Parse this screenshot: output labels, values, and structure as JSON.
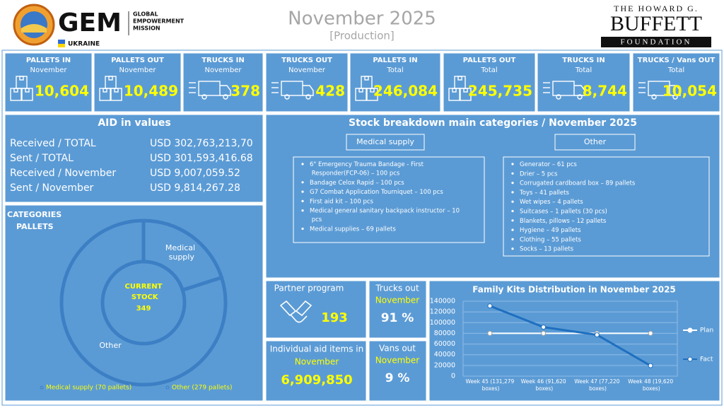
{
  "header": {
    "org_name": "GEM",
    "mission_lines": [
      "GLOBAL",
      "EMPOWERMENT",
      "MISSION"
    ],
    "country": "UKRAINE",
    "title": "November 2025",
    "subtitle": "[Production]",
    "sponsor_top": "THE HOWARD G.",
    "sponsor_name": "BUFFETT",
    "sponsor_bottom": "FOUNDATION"
  },
  "kpis": [
    {
      "label": "PALLETS IN",
      "period": "November",
      "value": "10,604"
    },
    {
      "label": "PALLETS OUT",
      "period": "November",
      "value": "10,489"
    },
    {
      "label": "TRUCKS IN",
      "period": "November",
      "value": "378"
    },
    {
      "label": "TRUCKS OUT",
      "period": "November",
      "value": "428"
    },
    {
      "label": "PALLETS IN",
      "period": "Total",
      "value": "246,084"
    },
    {
      "label": "PALLETS OUT",
      "period": "Total",
      "value": "245,735"
    },
    {
      "label": "TRUCKS IN",
      "period": "Total",
      "value": "8,744"
    },
    {
      "label": "TRUCKS / Vans OUT",
      "period": "Total",
      "value": "10,054"
    }
  ],
  "aid": {
    "title": "AID in values",
    "rows": [
      [
        "Received / TOTAL",
        "USD 302,763,213,70"
      ],
      [
        "Sent / TOTAL",
        "USD 301,593,416.68"
      ],
      [
        "Received / November",
        "USD 9,007,059.52"
      ],
      [
        "Sent / November",
        "USD 9,814,267.28"
      ]
    ]
  },
  "stock": {
    "title": "Stock breakdown main categories / November 2025",
    "groups": [
      {
        "name": "Medical supply",
        "items": [
          "6\" Emergency Trauma Bandage - First Responder(FCP-06) – 100 pcs",
          "Bandage Celox Rapid – 100 pcs",
          "G7 Combat Application Tourniquet – 100 pcs",
          "First aid kit – 100 pcs",
          "Medical general sanitary backpack instructor – 10 pcs",
          "Medical supplies – 69 pallets"
        ]
      },
      {
        "name": "Other",
        "items": [
          "Generator – 61 pcs",
          "Drier – 5 pcs",
          "Corrugated cardboard box – 89 pallets",
          "Toys – 41 pallets",
          "Wet wipes – 4 pallets",
          "Suitcases – 1 pallets (30 pcs)",
          "Blankets, pillows – 12 pallets",
          "Hygiene – 49 pallets",
          "Clothing – 55 pallets",
          "Socks – 13 pallets"
        ]
      }
    ]
  },
  "partner": {
    "label": "Partner program",
    "value": "193"
  },
  "trucks_share": {
    "label": "Trucks out",
    "period": "November",
    "value": "91 %"
  },
  "vans_share": {
    "label": "Vans out",
    "period": "November",
    "value": "9 %"
  },
  "individual": {
    "label": "Individual aid items in",
    "period": "November",
    "value": "6,909,850"
  },
  "chart_data": [
    {
      "type": "donut",
      "title": "CATEGORIES",
      "subtitle": "PALLETS",
      "center_label": "CURRENT STOCK",
      "center_value": 349,
      "categories": [
        "Medical supply",
        "Other"
      ],
      "values": [
        70,
        279
      ],
      "color": "#5b9bd5",
      "legend_labels": [
        "Medical supply (70 pallets)",
        "Other (279 pallets)"
      ]
    },
    {
      "type": "line",
      "title": "Family Kits Distribution in November 2025",
      "categories": [
        "Week 45 (131,279 boxes)",
        "Week 46 (91,620 boxes)",
        "Week 47 (77,220 boxes)",
        "Week 48 (19,620 boxes)"
      ],
      "series": [
        {
          "name": "Plan",
          "color": "#ffffff",
          "values": [
            80000,
            80000,
            80000,
            80000
          ]
        },
        {
          "name": "Fact",
          "color": "#1f6fbf",
          "values": [
            131279,
            91620,
            77220,
            19620
          ]
        }
      ],
      "ylim": [
        0,
        140000
      ],
      "yticks": [
        0,
        20000,
        40000,
        60000,
        80000,
        100000,
        120000,
        140000
      ],
      "grid": true,
      "legend": "right"
    }
  ]
}
